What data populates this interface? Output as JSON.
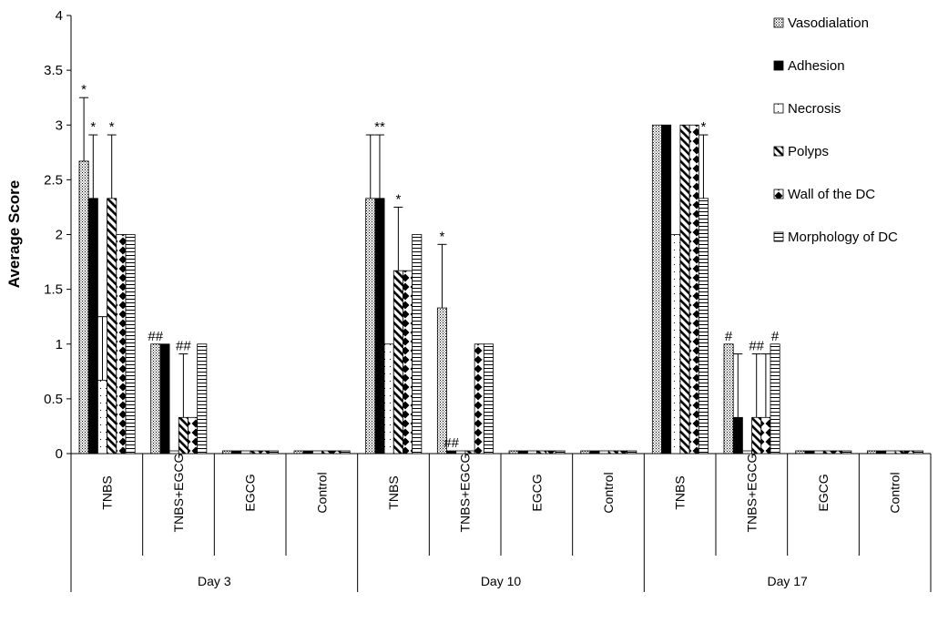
{
  "chart_data": {
    "type": "bar",
    "ylabel": "Average Score",
    "xlabel": "",
    "ylim": [
      0,
      4
    ],
    "yticks": [
      "0",
      "0.5",
      "1",
      "1.5",
      "2",
      "2.5",
      "3",
      "3.5",
      "4"
    ],
    "grid": false,
    "legend_position": "top-right",
    "groups": [
      {
        "label": "Day 3",
        "categories": [
          "TNBS",
          "TNBS+EGCG",
          "EGCG",
          "Control"
        ]
      },
      {
        "label": "Day 10",
        "categories": [
          "TNBS",
          "TNBS+EGCG",
          "EGCG",
          "Control"
        ]
      },
      {
        "label": "Day 17",
        "categories": [
          "TNBS",
          "TNBS+EGCG",
          "EGCG",
          "Control"
        ]
      }
    ],
    "series": [
      {
        "name": "Vasodialation",
        "values": [
          2.67,
          1.0,
          0,
          0,
          2.33,
          1.33,
          0,
          0,
          3.0,
          1.0,
          0,
          0
        ],
        "errors": [
          0.58,
          0,
          0,
          0,
          0.58,
          0.58,
          0,
          0,
          0,
          0,
          0,
          0
        ],
        "annotations": [
          "*",
          "##",
          "",
          "",
          "",
          "*",
          "",
          "",
          "",
          "#",
          "",
          ""
        ]
      },
      {
        "name": "Adhesion",
        "values": [
          2.33,
          1.0,
          0,
          0,
          2.33,
          0,
          0,
          0,
          3.0,
          0.33,
          0,
          0
        ],
        "errors": [
          0.58,
          0,
          0,
          0,
          0.58,
          0,
          0,
          0,
          0,
          0.58,
          0,
          0
        ],
        "annotations": [
          "*",
          "",
          "",
          "",
          "**",
          "##",
          "",
          "",
          "",
          "",
          "",
          ""
        ]
      },
      {
        "name": "Necrosis",
        "values": [
          0.67,
          0,
          0,
          0,
          1.0,
          0,
          0,
          0,
          2.0,
          0,
          0,
          0
        ],
        "errors": [
          0.58,
          0,
          0,
          0,
          0,
          0,
          0,
          0,
          0,
          0,
          0,
          0
        ],
        "annotations": [
          "",
          "",
          "",
          "",
          "",
          "",
          "",
          "",
          "",
          "",
          "",
          ""
        ]
      },
      {
        "name": "Polyps",
        "values": [
          2.33,
          0.33,
          0,
          0,
          1.67,
          0,
          0,
          0,
          3.0,
          0.33,
          0,
          0
        ],
        "errors": [
          0.58,
          0.58,
          0,
          0,
          0.58,
          0,
          0,
          0,
          0,
          0.58,
          0,
          0
        ],
        "annotations": [
          "*",
          "##",
          "",
          "",
          "*",
          "",
          "",
          "",
          "",
          "##",
          "",
          ""
        ]
      },
      {
        "name": "Wall of the DC",
        "values": [
          2.0,
          0.33,
          0,
          0,
          1.67,
          1.0,
          0,
          0,
          3.0,
          0.33,
          0,
          0
        ],
        "errors": [
          0,
          0,
          0,
          0,
          0,
          0,
          0,
          0,
          0,
          0.58,
          0,
          0
        ],
        "annotations": [
          "",
          "",
          "",
          "",
          "",
          "",
          "",
          "",
          "",
          "",
          "",
          ""
        ]
      },
      {
        "name": "Morphology of DC",
        "values": [
          2.0,
          1.0,
          0,
          0,
          2.0,
          1.0,
          0,
          0,
          2.33,
          1.0,
          0,
          0
        ],
        "errors": [
          0,
          0,
          0,
          0,
          0,
          0,
          0,
          0,
          0.58,
          0,
          0,
          0
        ],
        "annotations": [
          "",
          "",
          "",
          "",
          "",
          "",
          "",
          "",
          "*",
          "#",
          "",
          ""
        ]
      }
    ]
  }
}
